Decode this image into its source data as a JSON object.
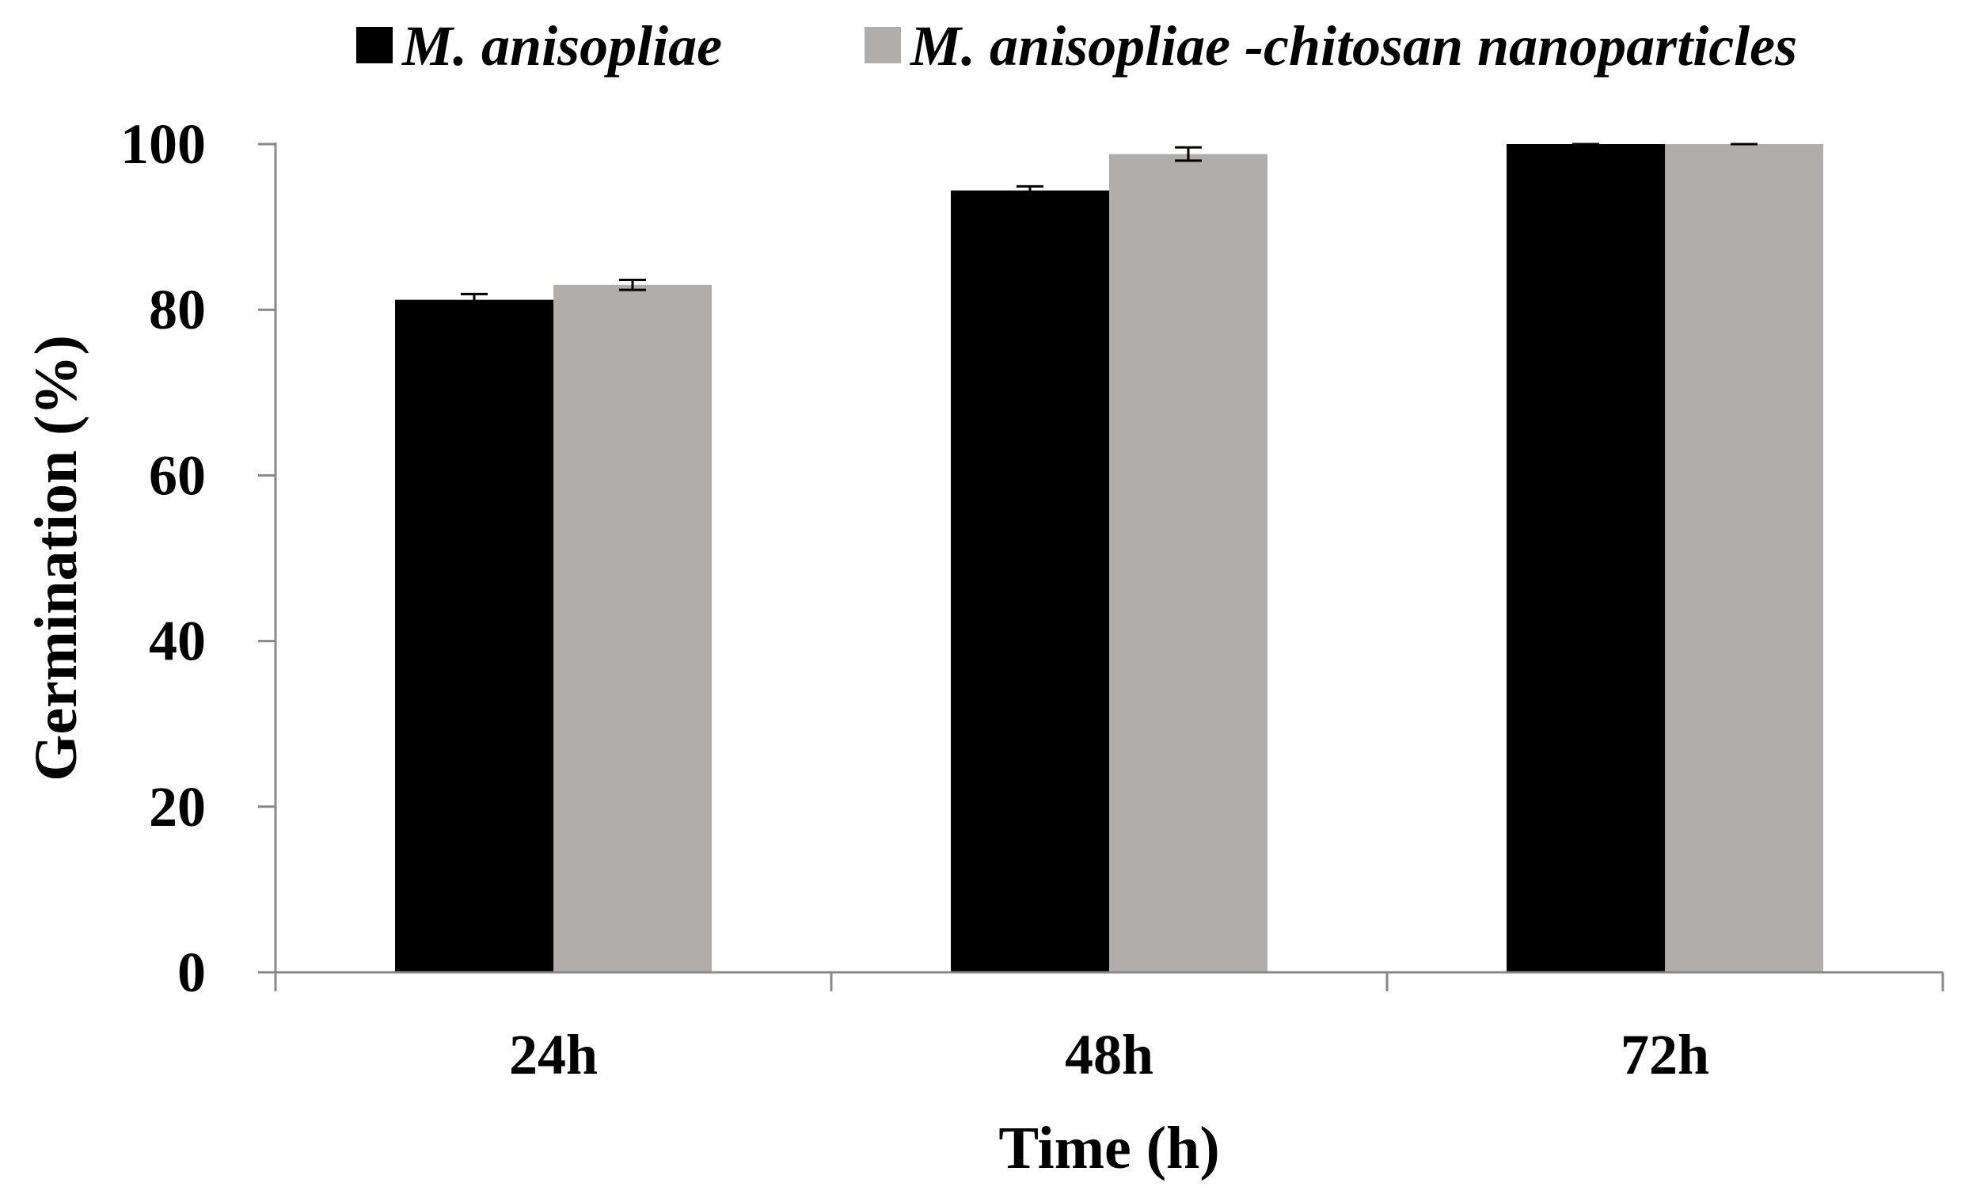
{
  "chart_data": {
    "type": "bar",
    "title": "",
    "xlabel": "Time (h)",
    "ylabel": "Germination (%)",
    "categories": [
      "24h",
      "48h",
      "72h"
    ],
    "ylim": [
      0,
      100
    ],
    "yticks": [
      0,
      20,
      40,
      60,
      80,
      100
    ],
    "grid": false,
    "legend": {
      "placement": "top"
    },
    "series": [
      {
        "name": "M. anisopliae",
        "color": "#000000",
        "values": [
          81.2,
          94.4,
          100
        ],
        "errors": [
          0.7,
          0.5,
          0
        ]
      },
      {
        "name": "M. anisopliae -chitosan nanoparticles",
        "color": "#b0adab",
        "values": [
          83.0,
          98.8,
          100
        ],
        "errors": [
          0.6,
          0.8,
          0
        ]
      }
    ]
  }
}
